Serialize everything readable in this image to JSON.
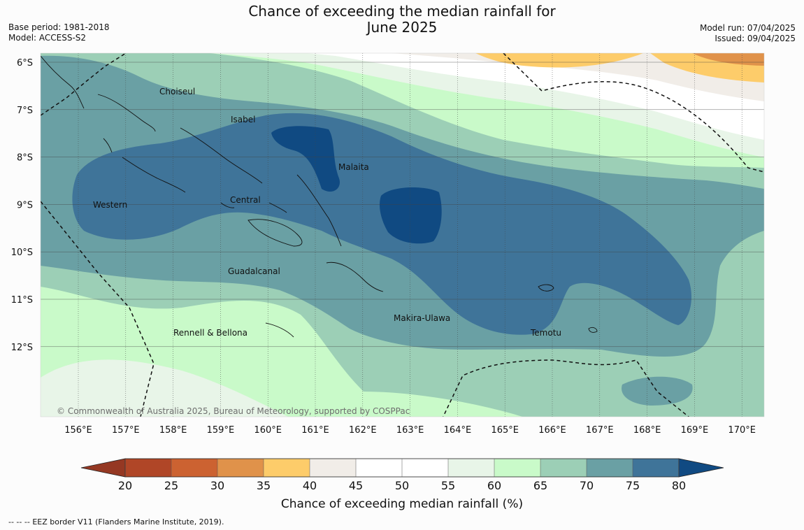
{
  "header": {
    "title_line1": "Chance of exceeding the median rainfall for",
    "title_line2": "June 2025",
    "base_period": "Base period: 1981-2018",
    "model": "Model: ACCESS-S2",
    "model_run": "Model run: 07/04/2025",
    "issued": "Issued: 09/04/2025"
  },
  "map": {
    "lat_labels": [
      "6°S",
      "7°S",
      "8°S",
      "9°S",
      "10°S",
      "11°S",
      "12°S"
    ],
    "lon_labels": [
      "156°E",
      "157°E",
      "158°E",
      "159°E",
      "160°E",
      "161°E",
      "162°E",
      "163°E",
      "164°E",
      "165°E",
      "166°E",
      "167°E",
      "168°E",
      "169°E",
      "170°E"
    ],
    "provinces": [
      "Choiseul",
      "Isabel",
      "Malaita",
      "Western",
      "Central",
      "Guadalcanal",
      "Makira-Ulawa",
      "Temotu",
      "Rennell & Bellona"
    ],
    "copyright": "© Commonwealth of Australia 2025, Bureau of Meteorology, supported by COSPPac"
  },
  "colorbar": {
    "ticks": [
      "20",
      "25",
      "30",
      "35",
      "40",
      "45",
      "50",
      "55",
      "60",
      "65",
      "70",
      "75",
      "80"
    ],
    "colors": [
      "#b04627",
      "#cc6231",
      "#e0924a",
      "#fdcc6a",
      "#f1ede8",
      "#ffffff",
      "#ffffff",
      "#e8f5e8",
      "#c9fac9",
      "#9ccfb6",
      "#6aa0a4",
      "#3f7499"
    ],
    "under_color": "#953823",
    "over_color": "#104a82",
    "label": "Chance of exceeding median rainfall (%)"
  },
  "footer": {
    "legend_marker": "--  --  --",
    "legend_text": "EEZ border V11 (Flanders Marine Institute, 2019)."
  }
}
